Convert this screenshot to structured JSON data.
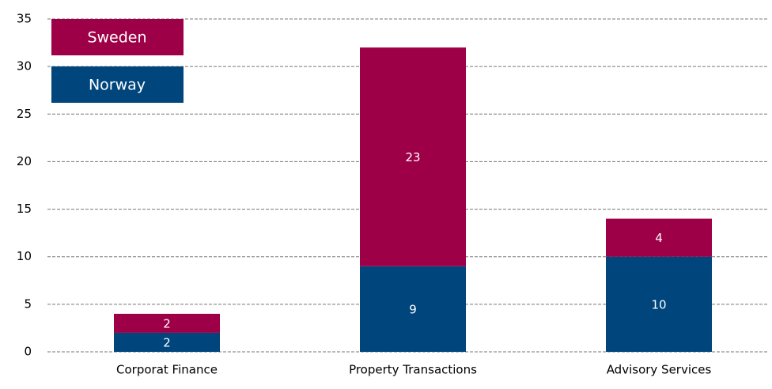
{
  "chart_data": {
    "type": "stacked_bar",
    "categories": [
      "Corporat Finance",
      "Property Transactions",
      "Advisory Services"
    ],
    "series": [
      {
        "name": "Norway",
        "color": "#00457c",
        "values": [
          2,
          9,
          10
        ]
      },
      {
        "name": "Sweden",
        "color": "#9e0047",
        "values": [
          2,
          23,
          4
        ]
      }
    ],
    "ylim": [
      0,
      35
    ],
    "yticks": [
      0,
      5,
      10,
      15,
      20,
      25,
      30,
      35
    ],
    "grid": true,
    "legend": "upper-left"
  }
}
